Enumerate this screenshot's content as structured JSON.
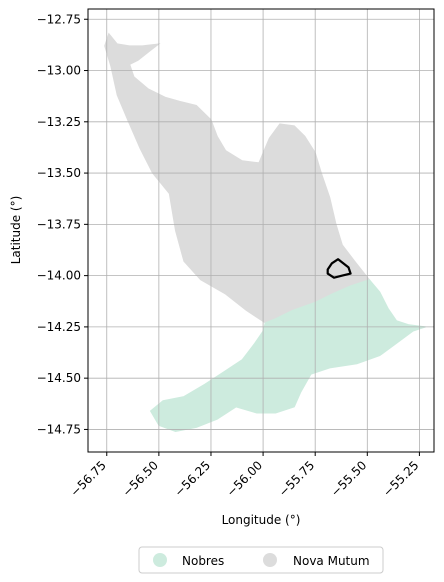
{
  "map": {
    "xlabel": "Longitude (°)",
    "ylabel": "Latitude (°)",
    "xlim": [
      -56.84,
      -55.18
    ],
    "ylim": [
      -14.86,
      -12.7
    ],
    "xticks": [
      -56.75,
      -56.5,
      -56.25,
      -56.0,
      -55.75,
      -55.5,
      -55.25
    ],
    "xtick_labels": [
      "−56.75",
      "−56.50",
      "−56.25",
      "−56.00",
      "−55.75",
      "−55.50",
      "−55.25"
    ],
    "yticks": [
      -12.75,
      -13.0,
      -13.25,
      -13.5,
      -13.75,
      -14.0,
      -14.25,
      -14.5,
      -14.75
    ],
    "ytick_labels": [
      "−12.75",
      "−13.00",
      "−13.25",
      "−13.50",
      "−13.75",
      "−14.00",
      "−14.25",
      "−14.50",
      "−14.75"
    ],
    "grid": true,
    "regions": [
      {
        "name": "Nova Mutum",
        "color": "#dcdcdc",
        "coords": [
          [
            -56.74,
            -12.82
          ],
          [
            -56.7,
            -12.87
          ],
          [
            -56.64,
            -12.88
          ],
          [
            -56.58,
            -12.88
          ],
          [
            -56.5,
            -12.87
          ],
          [
            -56.55,
            -12.91
          ],
          [
            -56.6,
            -12.95
          ],
          [
            -56.64,
            -12.97
          ],
          [
            -56.62,
            -13.03
          ],
          [
            -56.55,
            -13.09
          ],
          [
            -56.47,
            -13.13
          ],
          [
            -56.4,
            -13.15
          ],
          [
            -56.32,
            -13.17
          ],
          [
            -56.25,
            -13.24
          ],
          [
            -56.22,
            -13.32
          ],
          [
            -56.18,
            -13.39
          ],
          [
            -56.1,
            -13.44
          ],
          [
            -56.02,
            -13.45
          ],
          [
            -55.97,
            -13.33
          ],
          [
            -55.92,
            -13.26
          ],
          [
            -55.85,
            -13.27
          ],
          [
            -55.8,
            -13.32
          ],
          [
            -55.75,
            -13.4
          ],
          [
            -55.72,
            -13.5
          ],
          [
            -55.68,
            -13.62
          ],
          [
            -55.65,
            -13.75
          ],
          [
            -55.62,
            -13.85
          ],
          [
            -55.56,
            -13.93
          ],
          [
            -55.49,
            -14.02
          ],
          [
            -55.58,
            -14.05
          ],
          [
            -55.67,
            -14.09
          ],
          [
            -55.75,
            -14.13
          ],
          [
            -55.86,
            -14.17
          ],
          [
            -55.94,
            -14.21
          ],
          [
            -55.99,
            -14.23
          ],
          [
            -56.08,
            -14.17
          ],
          [
            -56.18,
            -14.09
          ],
          [
            -56.3,
            -14.02
          ],
          [
            -56.38,
            -13.93
          ],
          [
            -56.42,
            -13.78
          ],
          [
            -56.45,
            -13.6
          ],
          [
            -56.53,
            -13.5
          ],
          [
            -56.59,
            -13.38
          ],
          [
            -56.65,
            -13.24
          ],
          [
            -56.7,
            -13.12
          ],
          [
            -56.73,
            -12.98
          ],
          [
            -56.76,
            -12.88
          ]
        ]
      },
      {
        "name": "Nobres",
        "color": "#cdebde",
        "coords": [
          [
            -55.99,
            -14.23
          ],
          [
            -55.94,
            -14.21
          ],
          [
            -55.86,
            -14.17
          ],
          [
            -55.75,
            -14.13
          ],
          [
            -55.67,
            -14.09
          ],
          [
            -55.58,
            -14.05
          ],
          [
            -55.49,
            -14.02
          ],
          [
            -55.44,
            -14.08
          ],
          [
            -55.4,
            -14.16
          ],
          [
            -55.36,
            -14.22
          ],
          [
            -55.3,
            -14.24
          ],
          [
            -55.22,
            -14.25
          ],
          [
            -55.28,
            -14.27
          ],
          [
            -55.36,
            -14.33
          ],
          [
            -55.44,
            -14.39
          ],
          [
            -55.55,
            -14.43
          ],
          [
            -55.68,
            -14.45
          ],
          [
            -55.77,
            -14.48
          ],
          [
            -55.82,
            -14.57
          ],
          [
            -55.85,
            -14.64
          ],
          [
            -55.94,
            -14.67
          ],
          [
            -56.03,
            -14.67
          ],
          [
            -56.13,
            -14.64
          ],
          [
            -56.22,
            -14.7
          ],
          [
            -56.32,
            -14.74
          ],
          [
            -56.42,
            -14.76
          ],
          [
            -56.5,
            -14.73
          ],
          [
            -56.54,
            -14.66
          ],
          [
            -56.48,
            -14.61
          ],
          [
            -56.38,
            -14.59
          ],
          [
            -56.28,
            -14.53
          ],
          [
            -56.19,
            -14.47
          ],
          [
            -56.1,
            -14.41
          ],
          [
            -56.04,
            -14.33
          ],
          [
            -56.0,
            -14.27
          ]
        ]
      }
    ],
    "highlight_outline": {
      "color": "#000000",
      "coords": [
        [
          -55.64,
          -13.92
        ],
        [
          -55.59,
          -13.96
        ],
        [
          -55.58,
          -13.99
        ],
        [
          -55.62,
          -14.0
        ],
        [
          -55.66,
          -14.01
        ],
        [
          -55.69,
          -13.99
        ],
        [
          -55.69,
          -13.97
        ],
        [
          -55.67,
          -13.94
        ]
      ]
    }
  },
  "legend": {
    "placement": "bottom-center",
    "items": [
      {
        "label": "Nobres",
        "color": "#cdebde"
      },
      {
        "label": "Nova Mutum",
        "color": "#dcdcdc"
      }
    ]
  }
}
